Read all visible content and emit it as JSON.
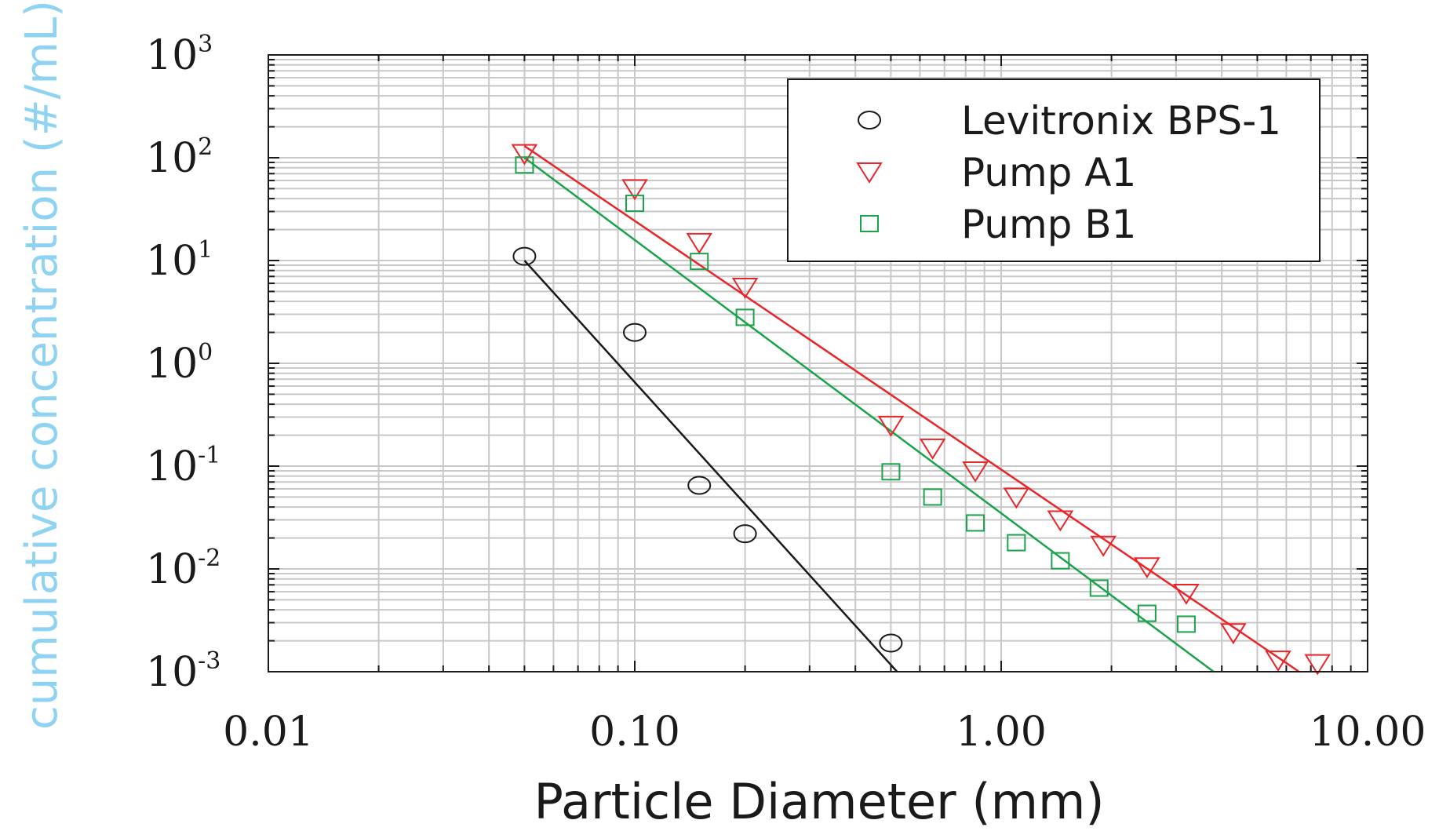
{
  "chart_data": {
    "type": "scatter",
    "xlabel": "Particle Diameter (mm)",
    "ylabel": "cumulative concentration (#/mL)",
    "xscale": "log",
    "yscale": "log",
    "xlim": [
      0.01,
      10
    ],
    "ylim": [
      0.001,
      1000
    ],
    "x_tick_labels": [
      "0.01",
      "0.10",
      "1.00",
      "10.00"
    ],
    "y_tick_labels": [
      {
        "base": "10",
        "exp": "3"
      },
      {
        "base": "10",
        "exp": "2"
      },
      {
        "base": "10",
        "exp": "1"
      },
      {
        "base": "10",
        "exp": "0"
      },
      {
        "base": "10",
        "exp": "-1"
      },
      {
        "base": "10",
        "exp": "-2"
      },
      {
        "base": "10",
        "exp": "-3"
      }
    ],
    "grid": true,
    "legend_position": "top-right",
    "series": [
      {
        "name": "Levitronix BPS-1",
        "marker": "circle",
        "color": "#1a1a1a",
        "points": [
          [
            0.05,
            11
          ],
          [
            0.1,
            2.0
          ],
          [
            0.15,
            0.065
          ],
          [
            0.2,
            0.022
          ],
          [
            0.5,
            0.0019
          ]
        ],
        "fit": [
          [
            0.05,
            10
          ],
          [
            0.52,
            0.001
          ]
        ]
      },
      {
        "name": "Pump A1",
        "marker": "triangle-down",
        "color": "#e8262a",
        "points": [
          [
            0.05,
            110
          ],
          [
            0.1,
            50
          ],
          [
            0.15,
            15
          ],
          [
            0.2,
            5.5
          ],
          [
            0.5,
            0.25
          ],
          [
            0.65,
            0.15
          ],
          [
            0.85,
            0.09
          ],
          [
            1.1,
            0.05
          ],
          [
            1.45,
            0.03
          ],
          [
            1.9,
            0.017
          ],
          [
            2.5,
            0.0105
          ],
          [
            3.2,
            0.0058
          ],
          [
            4.3,
            0.0024
          ],
          [
            5.7,
            0.0013
          ],
          [
            7.3,
            0.0012
          ]
        ],
        "fit": [
          [
            0.05,
            130
          ],
          [
            6.5,
            0.001
          ]
        ]
      },
      {
        "name": "Pump B1",
        "marker": "square",
        "color": "#1aa34a",
        "points": [
          [
            0.05,
            85
          ],
          [
            0.1,
            36
          ],
          [
            0.15,
            9.8
          ],
          [
            0.2,
            2.8
          ],
          [
            0.5,
            0.088
          ],
          [
            0.65,
            0.05
          ],
          [
            0.85,
            0.028
          ],
          [
            1.1,
            0.018
          ],
          [
            1.45,
            0.012
          ],
          [
            1.85,
            0.0065
          ],
          [
            2.5,
            0.0037
          ],
          [
            3.2,
            0.0029
          ]
        ],
        "fit": [
          [
            0.05,
            100
          ],
          [
            3.8,
            0.001
          ]
        ]
      }
    ]
  },
  "colors": {
    "ylabel": "#8fd3f2",
    "grid": "#c8c8c8",
    "frame": "#1a1a1a"
  }
}
